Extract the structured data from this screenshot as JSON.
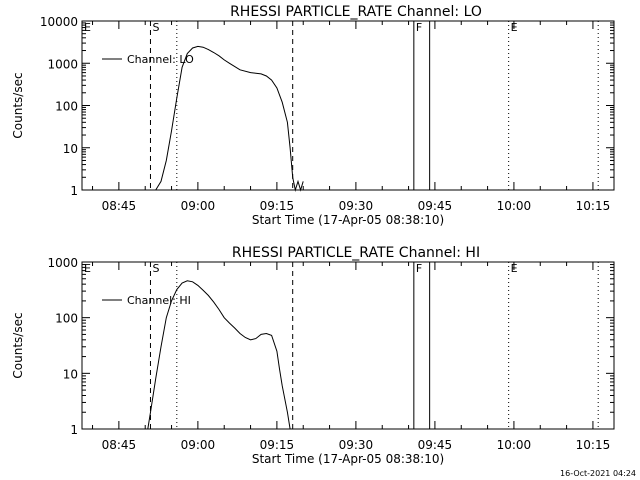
{
  "footer": {
    "timestamp": "16-Oct-2021 04:24"
  },
  "colors": {
    "background": "#ffffff",
    "foreground": "#000000"
  },
  "chart_data": [
    {
      "type": "line",
      "title": "RHESSI PARTICLE_RATE Channel: LO",
      "xlabel": "Start Time (17-Apr-05 08:38:10)",
      "ylabel": "Counts/sec",
      "yscale": "log",
      "xlim": [
        "08:38",
        "10:19"
      ],
      "ylim": [
        1,
        10000
      ],
      "x_ticks": [
        "08:45",
        "09:00",
        "09:15",
        "09:30",
        "09:45",
        "10:00",
        "10:15"
      ],
      "y_ticks": [
        "1",
        "10",
        "100",
        "1000",
        "10000"
      ],
      "legend": {
        "position": "top-left",
        "entries": [
          "Channel: LO"
        ]
      },
      "series": [
        {
          "name": "Channel: LO",
          "x": [
            "08:52:00",
            "08:53:00",
            "08:54:00",
            "08:55:00",
            "08:56:00",
            "08:57:00",
            "08:58:00",
            "08:59:00",
            "09:00:00",
            "09:01:00",
            "09:02:00",
            "09:03:00",
            "09:04:00",
            "09:05:00",
            "09:06:00",
            "09:08:00",
            "09:10:00",
            "09:11:00",
            "09:12:00",
            "09:13:00",
            "09:14:00",
            "09:15:00",
            "09:16:00",
            "09:17:00",
            "09:17:30",
            "09:18:00",
            "09:18:30",
            "09:19:00",
            "09:19:30",
            "09:20:00"
          ],
          "values": [
            1,
            1.6,
            5,
            25,
            150,
            800,
            1700,
            2300,
            2500,
            2400,
            2100,
            1800,
            1500,
            1200,
            1000,
            700,
            600,
            580,
            560,
            500,
            400,
            260,
            120,
            40,
            10,
            2,
            1,
            1.6,
            1,
            1.6
          ]
        }
      ],
      "markers": [
        {
          "label": "E",
          "x": "08:38",
          "style": "dotted"
        },
        {
          "label": "S",
          "x": "08:51",
          "style": "dashed"
        },
        {
          "label": "",
          "x": "08:56",
          "style": "dotted"
        },
        {
          "label": "",
          "x": "09:18",
          "style": "dashed"
        },
        {
          "label": "F",
          "x": "09:41",
          "style": "solid"
        },
        {
          "label": "",
          "x": "09:44",
          "style": "solid"
        },
        {
          "label": "E",
          "x": "09:59",
          "style": "dotted"
        },
        {
          "label": "",
          "x": "10:16",
          "style": "dotted"
        }
      ]
    },
    {
      "type": "line",
      "title": "RHESSI PARTICLE_RATE Channel: HI",
      "xlabel": "Start Time (17-Apr-05 08:38:10)",
      "ylabel": "Counts/sec",
      "yscale": "log",
      "xlim": [
        "08:38",
        "10:19"
      ],
      "ylim": [
        1,
        1000
      ],
      "x_ticks": [
        "08:45",
        "09:00",
        "09:15",
        "09:30",
        "09:45",
        "10:00",
        "10:15"
      ],
      "y_ticks": [
        "1",
        "10",
        "100",
        "1000"
      ],
      "legend": {
        "position": "top-left",
        "entries": [
          "Channel: HI"
        ]
      },
      "series": [
        {
          "name": "Channel: HI",
          "x": [
            "08:50:30",
            "08:51:00",
            "08:52:00",
            "08:53:00",
            "08:54:00",
            "08:55:00",
            "08:56:00",
            "08:57:00",
            "08:58:00",
            "08:59:00",
            "09:00:00",
            "09:01:00",
            "09:02:00",
            "09:03:00",
            "09:04:00",
            "09:05:00",
            "09:06:00",
            "09:07:00",
            "09:08:00",
            "09:09:00",
            "09:10:00",
            "09:11:00",
            "09:12:00",
            "09:13:00",
            "09:14:00",
            "09:15:00",
            "09:15:30",
            "09:16:00",
            "09:17:00",
            "09:17:30"
          ],
          "values": [
            1,
            2,
            8,
            30,
            100,
            200,
            320,
            420,
            460,
            440,
            380,
            310,
            250,
            190,
            140,
            100,
            80,
            65,
            52,
            44,
            40,
            42,
            50,
            52,
            48,
            25,
            12,
            6,
            2,
            1
          ]
        }
      ],
      "markers": [
        {
          "label": "E",
          "x": "08:38",
          "style": "dotted"
        },
        {
          "label": "S",
          "x": "08:51",
          "style": "dashed"
        },
        {
          "label": "",
          "x": "08:56",
          "style": "dotted"
        },
        {
          "label": "",
          "x": "09:18",
          "style": "dashed"
        },
        {
          "label": "F",
          "x": "09:41",
          "style": "solid"
        },
        {
          "label": "",
          "x": "09:44",
          "style": "solid"
        },
        {
          "label": "E",
          "x": "09:59",
          "style": "dotted"
        },
        {
          "label": "",
          "x": "10:16",
          "style": "dotted"
        }
      ]
    }
  ]
}
